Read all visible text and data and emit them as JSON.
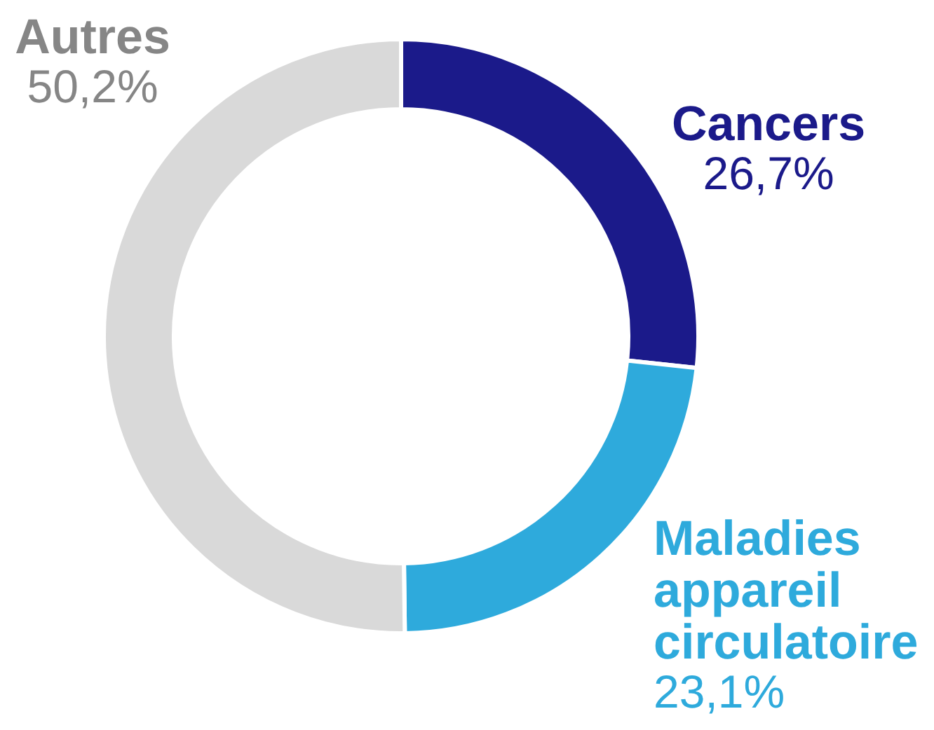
{
  "chart_data": {
    "type": "donut",
    "categories": [
      "Cancers",
      "Maladies appareil circulatoire",
      "Autres"
    ],
    "values": [
      26.7,
      23.1,
      50.2
    ],
    "colors": [
      "#1b1a8a",
      "#2eaadc",
      "#d9d9d9"
    ],
    "value_labels": [
      "26,7%",
      "23,1%",
      "50,2%"
    ]
  }
}
